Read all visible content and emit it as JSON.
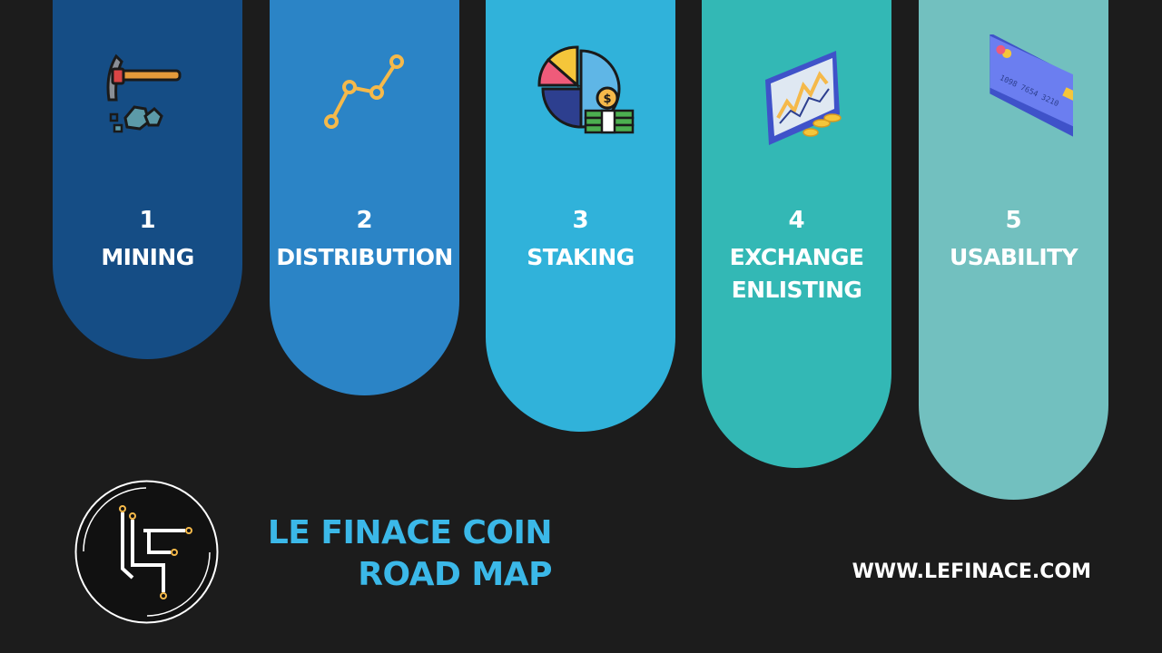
{
  "colors": {
    "background": "#1c1c1c",
    "pillar_1": "#154d85",
    "pillar_2": "#2b84c6",
    "pillar_3": "#30b2da",
    "pillar_4": "#33b8b5",
    "pillar_5": "#72c0bf",
    "brand_text": "#3bb8e8"
  },
  "roadmap": {
    "steps": [
      {
        "number": "1",
        "title_lines": [
          "MINING"
        ],
        "icon": "pickaxe-icon"
      },
      {
        "number": "2",
        "title_lines": [
          "DISTRIBUTION"
        ],
        "icon": "line-graph-icon"
      },
      {
        "number": "3",
        "title_lines": [
          "STAKING"
        ],
        "icon": "pie-chart-money-icon"
      },
      {
        "number": "4",
        "title_lines": [
          "EXCHANGE",
          "ENLISTING"
        ],
        "icon": "trading-monitor-icon"
      },
      {
        "number": "5",
        "title_lines": [
          "USABILITY"
        ],
        "icon": "credit-card-icon"
      }
    ]
  },
  "card": {
    "number_text": "1098 7654 3210"
  },
  "brand": {
    "logo_letters": "LF",
    "title_line1": "LE FINACE COIN",
    "title_line2": "ROAD MAP"
  },
  "footer": {
    "website": "WWW.LEFINACE.COM"
  }
}
